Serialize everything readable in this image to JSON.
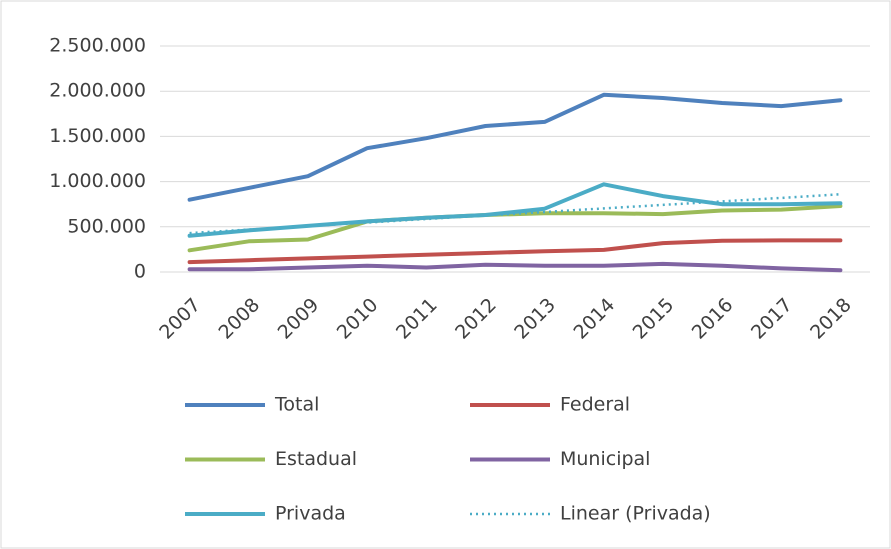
{
  "chart_data": {
    "type": "line",
    "categories": [
      "2007",
      "2008",
      "2009",
      "2010",
      "2011",
      "2012",
      "2013",
      "2014",
      "2015",
      "2016",
      "2017",
      "2018"
    ],
    "series": [
      {
        "name": "Total",
        "color": "#4f81bd",
        "values": [
          800000,
          930000,
          1060000,
          1370000,
          1480000,
          1615000,
          1660000,
          1960000,
          1925000,
          1870000,
          1835000,
          1900000
        ]
      },
      {
        "name": "Federal",
        "color": "#c0504d",
        "values": [
          110000,
          130000,
          150000,
          170000,
          190000,
          210000,
          230000,
          245000,
          320000,
          345000,
          350000,
          350000
        ]
      },
      {
        "name": "Estadual",
        "color": "#9bbb59",
        "values": [
          240000,
          340000,
          360000,
          560000,
          600000,
          630000,
          650000,
          650000,
          640000,
          680000,
          690000,
          730000
        ]
      },
      {
        "name": "Municipal",
        "color": "#8064a2",
        "values": [
          30000,
          30000,
          50000,
          70000,
          50000,
          80000,
          70000,
          70000,
          90000,
          70000,
          40000,
          20000
        ]
      },
      {
        "name": "Privada",
        "color": "#4bacc6",
        "values": [
          400000,
          460000,
          510000,
          560000,
          600000,
          630000,
          700000,
          970000,
          840000,
          750000,
          750000,
          760000
        ]
      },
      {
        "name": "Linear (Privada)",
        "color": "#4bacc6",
        "style": "dotted",
        "values": [
          430000,
          469000,
          508000,
          547000,
          586000,
          625000,
          664000,
          703000,
          742000,
          781000,
          820000,
          859000
        ]
      }
    ],
    "ylim": [
      0,
      2500000
    ],
    "yticks": [
      0,
      {
        "value": 500000,
        "label": "500.000"
      },
      {
        "value": 1000000,
        "label": "1.000.000"
      },
      {
        "value": 1500000,
        "label": "1.500.000"
      },
      {
        "value": 2000000,
        "label": "2.000.000"
      },
      {
        "value": 2500000,
        "label": "2.500.000"
      }
    ],
    "grid": true,
    "legend": "bottom"
  }
}
